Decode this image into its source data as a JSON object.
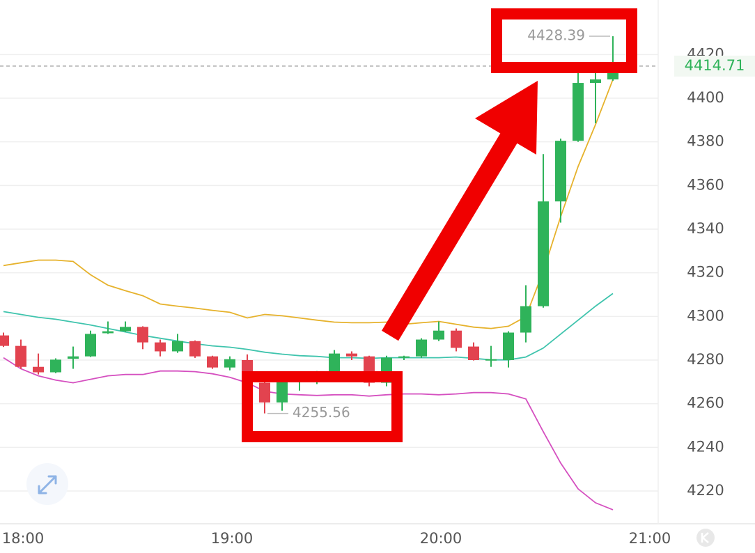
{
  "chart_data": {
    "type": "candlestick",
    "x": [
      "17:55",
      "18:00",
      "18:05",
      "18:10",
      "18:15",
      "18:20",
      "18:25",
      "18:30",
      "18:35",
      "18:40",
      "18:45",
      "18:50",
      "18:55",
      "19:00",
      "19:05",
      "19:10",
      "19:15",
      "19:20",
      "19:25",
      "19:30",
      "19:35",
      "19:40",
      "19:45",
      "19:50",
      "19:55",
      "20:00",
      "20:05",
      "20:10",
      "20:15",
      "20:20",
      "20:25",
      "20:30",
      "20:35",
      "20:40",
      "20:45",
      "20:50"
    ],
    "open": [
      4291.3,
      4286.5,
      4276.9,
      4274.4,
      4280.6,
      4281.7,
      4292.3,
      4293.2,
      4295.2,
      4288.1,
      4284.0,
      4288.7,
      4281.7,
      4276.6,
      4280.0,
      4269.6,
      4260.6,
      4270.2,
      4271.0,
      4274.4,
      4283.0,
      4281.7,
      4269.6,
      4281.1,
      4281.7,
      4289.4,
      4293.5,
      4286.2,
      4280.0,
      4280.0,
      4292.6,
      4304.7,
      4352.7,
      4380.5,
      4407.0,
      4408.6
    ],
    "high": [
      4292.6,
      4289.4,
      4283.0,
      4280.8,
      4286.2,
      4293.5,
      4297.7,
      4297.7,
      4295.5,
      4289.4,
      4292.0,
      4289.0,
      4282.0,
      4281.7,
      4282.6,
      4271.2,
      4270.5,
      4273.0,
      4275.0,
      4284.6,
      4284.0,
      4282.0,
      4282.0,
      4282.0,
      4290.0,
      4297.7,
      4294.5,
      4288.1,
      4286.5,
      4293.2,
      4314.3,
      4374.4,
      4381.5,
      4413.4,
      4413.4,
      4428.39
    ],
    "low": [
      4286.0,
      4276.0,
      4273.4,
      4274.0,
      4276.0,
      4281.4,
      4292.0,
      4292.9,
      4285.0,
      4281.7,
      4283.3,
      4281.0,
      4276.0,
      4275.3,
      4268.0,
      4255.56,
      4256.8,
      4266.0,
      4269.0,
      4273.4,
      4280.0,
      4268.0,
      4268.0,
      4280.0,
      4281.0,
      4288.7,
      4284.0,
      4279.8,
      4276.9,
      4276.6,
      4288.1,
      4304.0,
      4343.0,
      4380.0,
      4388.5,
      4408.0
    ],
    "close": [
      4286.5,
      4276.9,
      4274.4,
      4280.2,
      4281.7,
      4292.0,
      4293.2,
      4295.2,
      4288.1,
      4284.0,
      4288.7,
      4281.7,
      4276.6,
      4280.4,
      4269.6,
      4260.6,
      4270.2,
      4271.0,
      4272.0,
      4283.0,
      4281.7,
      4269.6,
      4281.1,
      4281.7,
      4289.4,
      4293.5,
      4285.6,
      4280.0,
      4280.4,
      4292.6,
      4304.7,
      4352.7,
      4380.5,
      4407.0,
      4408.6,
      4414.71
    ],
    "up_color": "#2fb35a",
    "down_color": "#e2434f",
    "overlays": [
      {
        "color": "#e6b22c",
        "values": [
          4323.3,
          4324.6,
          4325.8,
          4325.8,
          4325.2,
          4319.1,
          4314.3,
          4311.8,
          4309.5,
          4305.7,
          4304.7,
          4303.8,
          4302.8,
          4301.9,
          4299.3,
          4300.9,
          4300.3,
          4299.3,
          4298.3,
          4297.4,
          4297.1,
          4297.1,
          4297.4,
          4296.4,
          4297.1,
          4297.7,
          4296.4,
          4295.1,
          4294.5,
          4295.5,
          4299.9,
          4320.7,
          4345.7,
          4368.7,
          4387.9,
          4408.6
        ]
      },
      {
        "color": "#3fc4ad",
        "values": [
          4302.2,
          4300.9,
          4299.6,
          4298.7,
          4297.4,
          4296.1,
          4294.5,
          4292.9,
          4291.3,
          4290.0,
          4288.7,
          4287.5,
          4286.5,
          4285.9,
          4284.9,
          4283.6,
          4282.7,
          4282.0,
          4281.7,
          4281.1,
          4281.1,
          4280.8,
          4281.1,
          4281.1,
          4281.1,
          4281.1,
          4281.4,
          4280.8,
          4280.1,
          4280.1,
          4281.4,
          4285.5,
          4291.9,
          4298.3,
          4304.7,
          4310.5
        ]
      },
      {
        "color": "#d550c0",
        "values": [
          4281.1,
          4276.0,
          4272.8,
          4270.8,
          4269.6,
          4271.2,
          4272.8,
          4273.4,
          4273.4,
          4275.0,
          4275.0,
          4274.7,
          4273.7,
          4272.1,
          4269.6,
          4265.7,
          4264.5,
          4264.1,
          4263.8,
          4264.1,
          4264.1,
          4263.5,
          4264.1,
          4264.5,
          4264.5,
          4264.1,
          4264.5,
          4265.1,
          4265.1,
          4264.5,
          4262.2,
          4247.2,
          4232.8,
          4221.0,
          4214.6,
          4211.4
        ]
      }
    ],
    "xlim": [
      "17:54",
      "21:03"
    ],
    "xticks": [
      "18:00",
      "19:00",
      "20:00",
      "21:00"
    ],
    "ylim": [
      4205,
      4445
    ],
    "yticks": [
      4220,
      4240,
      4260,
      4280,
      4300,
      4320,
      4340,
      4360,
      4380,
      4400,
      4420
    ],
    "grid": true
  }
}
